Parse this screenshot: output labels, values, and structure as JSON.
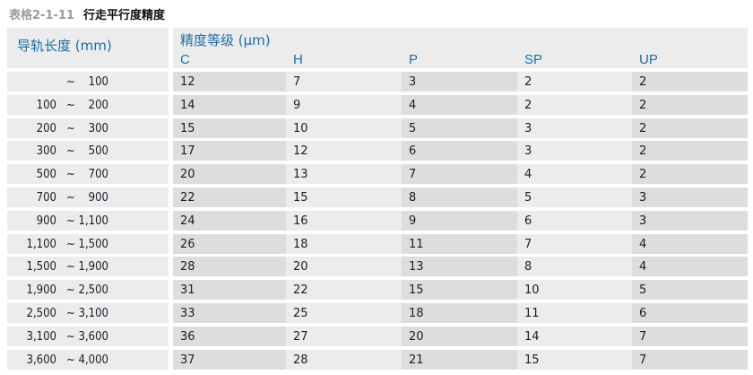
{
  "title": {
    "number": "表格2-1-11",
    "text": "行走平行度精度"
  },
  "header": {
    "length": "导轨长度 (mm)",
    "grade_group": "精度等级 (μm)",
    "grades": [
      "C",
      "H",
      "P",
      "SP",
      "UP"
    ]
  },
  "rows": [
    {
      "from": "",
      "sep": "~",
      "to": "100",
      "values": [
        "12",
        "7",
        "3",
        "2",
        "2"
      ]
    },
    {
      "from": "100",
      "sep": "~",
      "to": "200",
      "values": [
        "14",
        "9",
        "4",
        "2",
        "2"
      ]
    },
    {
      "from": "200",
      "sep": "~",
      "to": "300",
      "values": [
        "15",
        "10",
        "5",
        "3",
        "2"
      ]
    },
    {
      "from": "300",
      "sep": "~",
      "to": "500",
      "values": [
        "17",
        "12",
        "6",
        "3",
        "2"
      ]
    },
    {
      "from": "500",
      "sep": "~",
      "to": "700",
      "values": [
        "20",
        "13",
        "7",
        "4",
        "2"
      ]
    },
    {
      "from": "700",
      "sep": "~",
      "to": "900",
      "values": [
        "22",
        "15",
        "8",
        "5",
        "3"
      ]
    },
    {
      "from": "900",
      "sep": "~",
      "to": "1,100",
      "values": [
        "24",
        "16",
        "9",
        "6",
        "3"
      ]
    },
    {
      "from": "1,100",
      "sep": "~",
      "to": "1,500",
      "values": [
        "26",
        "18",
        "11",
        "7",
        "4"
      ]
    },
    {
      "from": "1,500",
      "sep": "~",
      "to": "1,900",
      "values": [
        "28",
        "20",
        "13",
        "8",
        "4"
      ]
    },
    {
      "from": "1,900",
      "sep": "~",
      "to": "2,500",
      "values": [
        "31",
        "22",
        "15",
        "10",
        "5"
      ]
    },
    {
      "from": "2,500",
      "sep": "~",
      "to": "3,100",
      "values": [
        "33",
        "25",
        "18",
        "11",
        "6"
      ]
    },
    {
      "from": "3,100",
      "sep": "~",
      "to": "3,600",
      "values": [
        "36",
        "27",
        "20",
        "14",
        "7"
      ]
    },
    {
      "from": "3,600",
      "sep": "~",
      "to": "4,000",
      "values": [
        "37",
        "28",
        "21",
        "15",
        "7"
      ]
    }
  ]
}
